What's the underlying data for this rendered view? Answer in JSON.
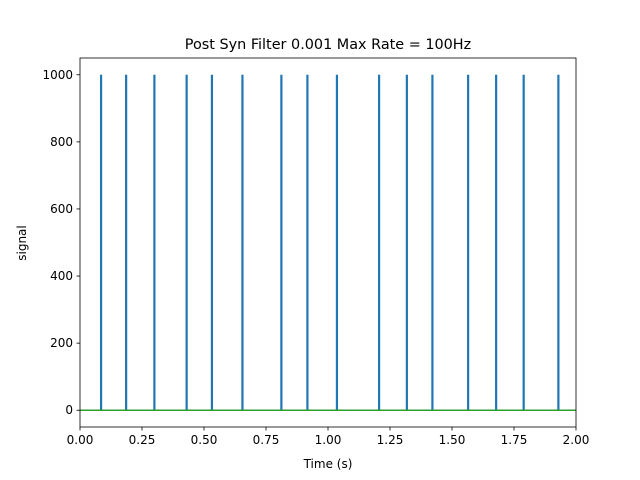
{
  "chart_data": {
    "type": "line",
    "title": "Post Syn Filter 0.001 Max Rate = 100Hz",
    "xlabel": "Time (s)",
    "ylabel": "signal",
    "xlim": [
      0.0,
      2.0
    ],
    "ylim": [
      -50,
      1050
    ],
    "xticks": [
      0.0,
      0.25,
      0.5,
      0.75,
      1.0,
      1.25,
      1.5,
      1.75,
      2.0
    ],
    "xtick_labels": [
      "0.00",
      "0.25",
      "0.50",
      "0.75",
      "1.00",
      "1.25",
      "1.50",
      "1.75",
      "2.00"
    ],
    "yticks": [
      0,
      200,
      400,
      600,
      800,
      1000
    ],
    "ytick_labels": [
      "0",
      "200",
      "400",
      "600",
      "800",
      "1000"
    ],
    "grid": false,
    "series": [
      {
        "color": "#1f77b4",
        "spike_times": [
          0.085,
          0.186,
          0.3,
          0.43,
          0.532,
          0.655,
          0.812,
          0.917,
          1.036,
          1.206,
          1.318,
          1.421,
          1.565,
          1.678,
          1.789,
          1.929
        ],
        "spike_value": 1000,
        "baseline": 0
      },
      {
        "color": "#2ca02c",
        "x": [
          0.0,
          2.0
        ],
        "values": [
          0,
          0
        ]
      }
    ]
  }
}
